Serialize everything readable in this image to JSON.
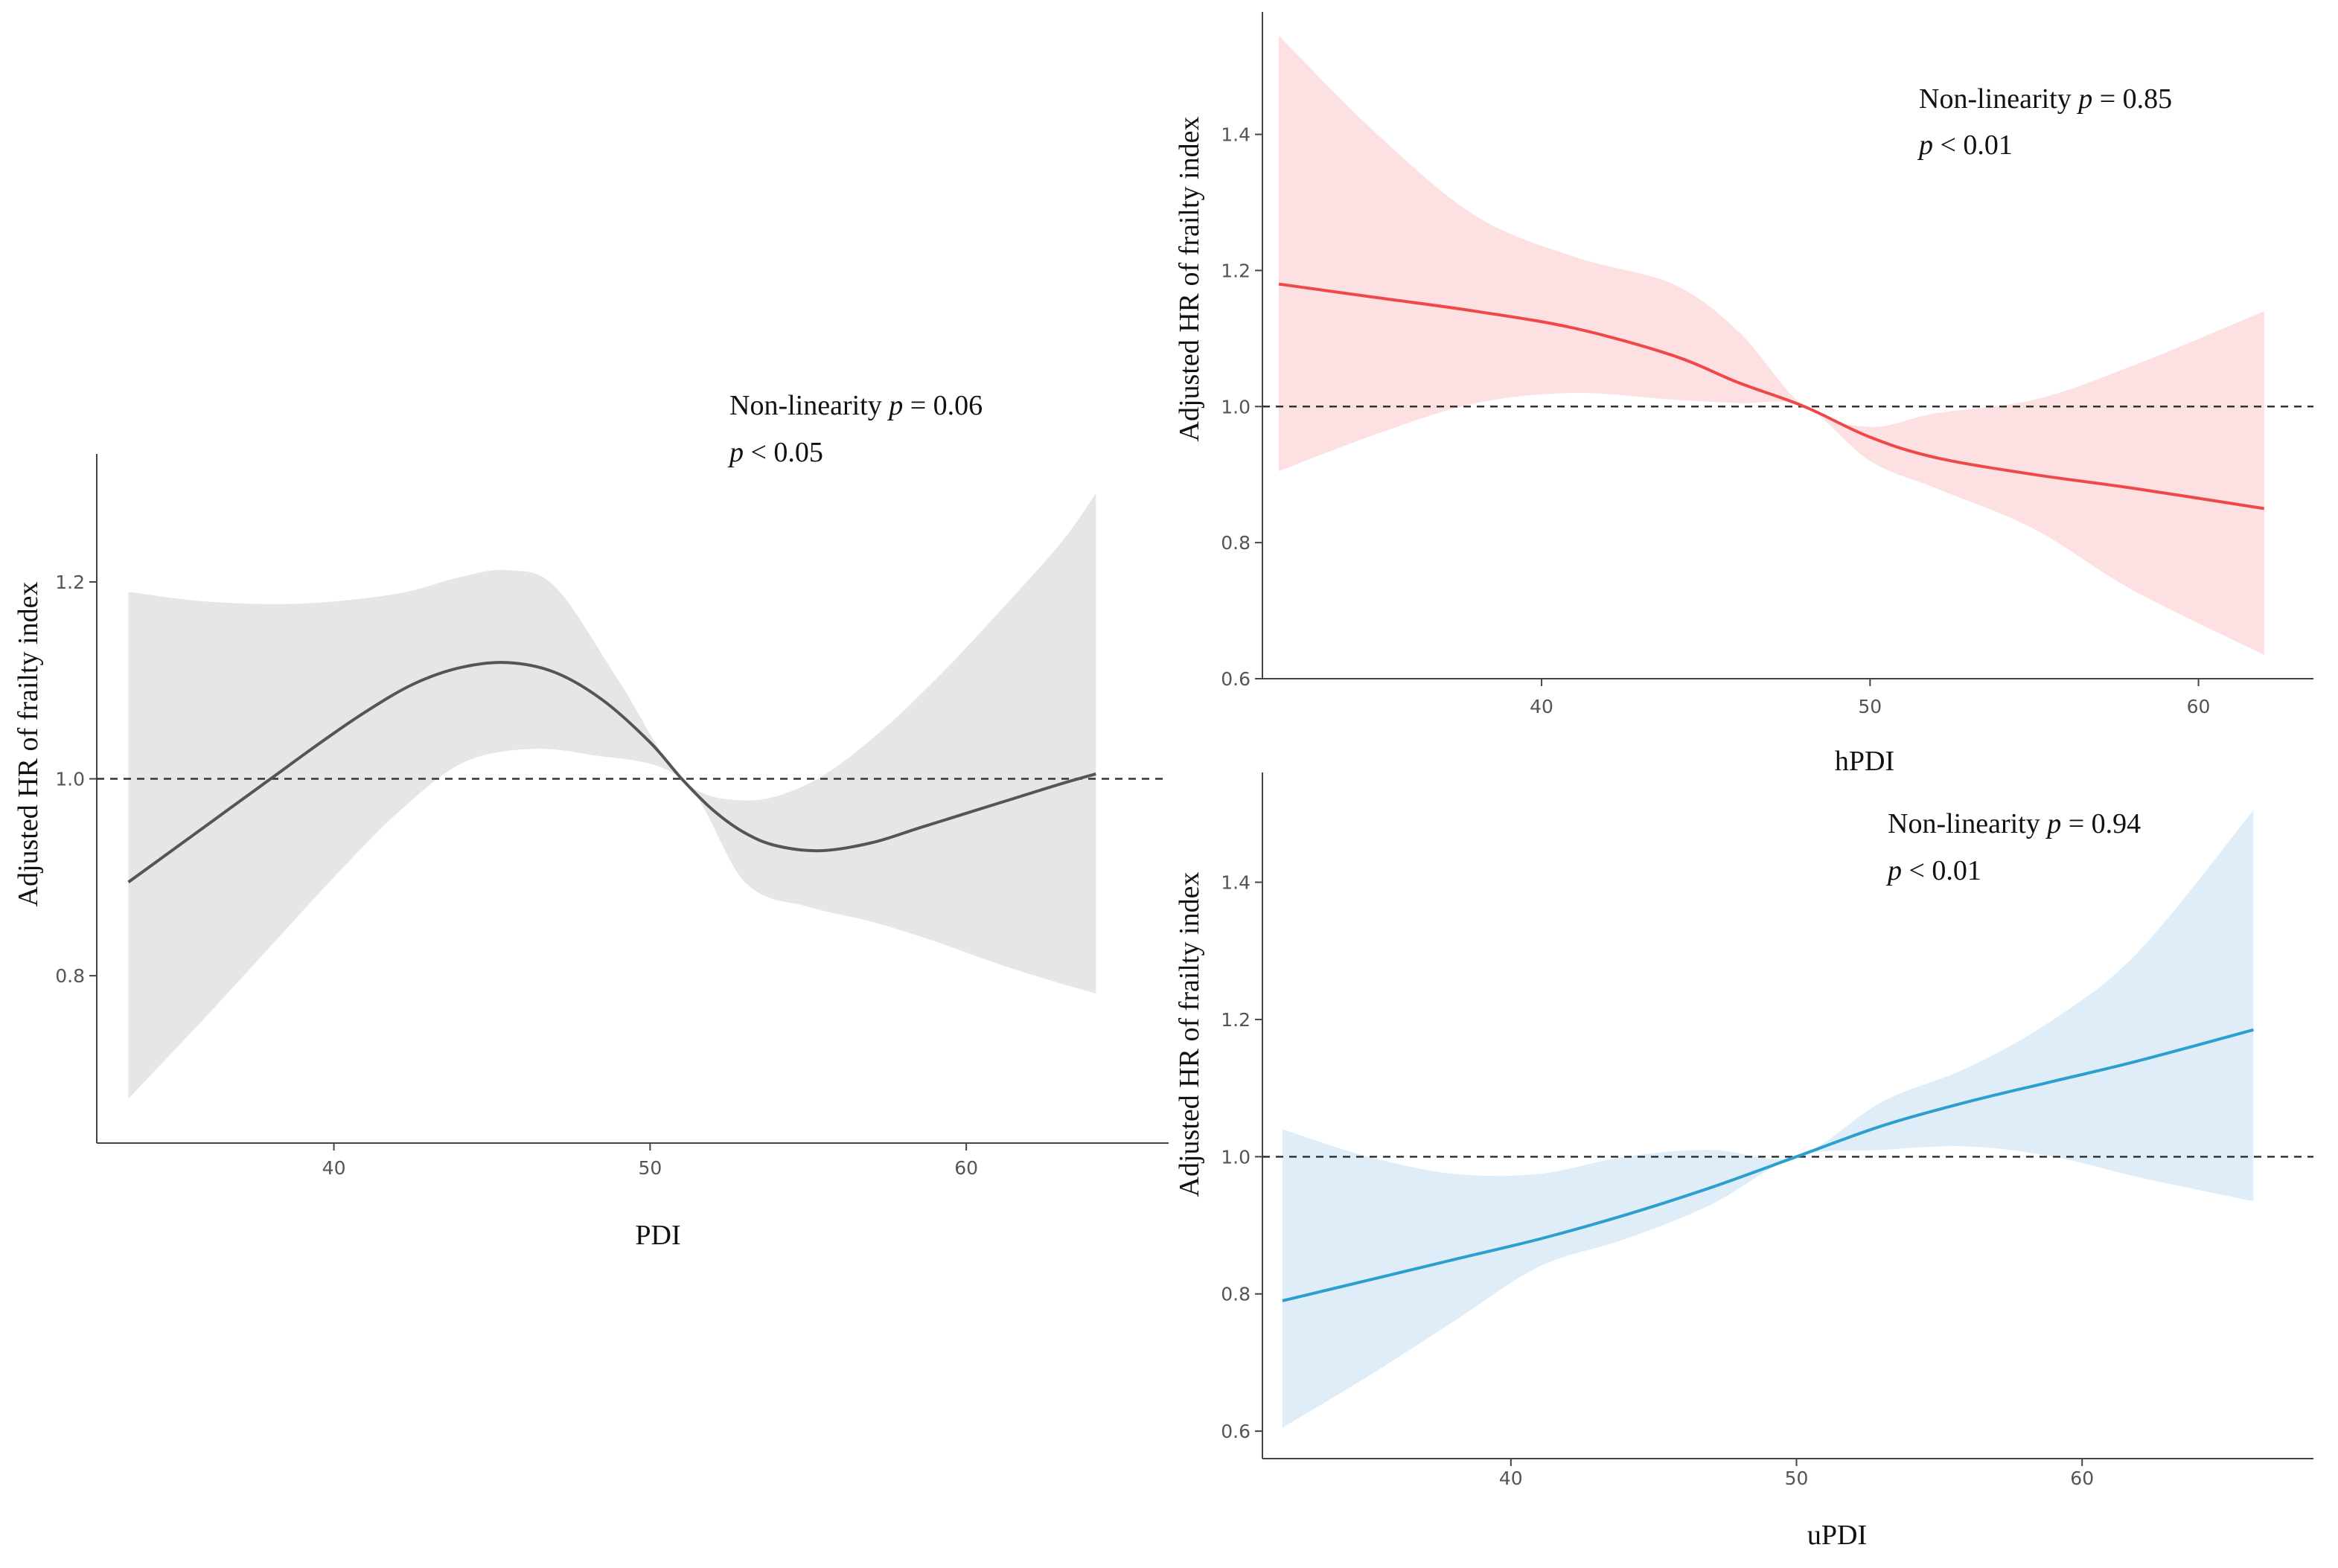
{
  "chart_data": [
    {
      "type": "line",
      "panel": "PDI",
      "xlabel": "PDI",
      "ylabel": "Adjusted HR of frailty index",
      "xlim": [
        32.5,
        66.4
      ],
      "ylim": [
        0.63,
        1.33
      ],
      "xticks": [
        40,
        50,
        60
      ],
      "yticks": [
        0.8,
        1.0,
        1.2
      ],
      "tick_labels_x": [
        "40",
        "50",
        "60"
      ],
      "tick_labels_y": [
        "0.8",
        "1.0",
        "1.2"
      ],
      "reference_line": 1.0,
      "color": "#555555",
      "band_color": "#e6e6e6",
      "annotation": {
        "line1_prefix": "Non-linearity ",
        "line1_p": "p",
        "line1_value": " = 0.06",
        "line2_p": "p",
        "line2_value": " < 0.05"
      },
      "series": [
        {
          "name": "HR",
          "x": [
            33.5,
            35,
            36.5,
            38,
            39.5,
            41,
            42.5,
            44,
            45.5,
            47,
            48.5,
            50,
            51,
            52,
            53,
            54,
            55.4,
            57,
            58.5,
            60,
            61.5,
            63,
            64.1
          ],
          "values": [
            0.895,
            0.93,
            0.965,
            1.0,
            1.035,
            1.068,
            1.096,
            1.113,
            1.118,
            1.108,
            1.08,
            1.037,
            1.0,
            0.968,
            0.945,
            0.932,
            0.927,
            0.935,
            0.95,
            0.965,
            0.98,
            0.995,
            1.005
          ]
        },
        {
          "name": "upper",
          "x": [
            33.5,
            36,
            39,
            42,
            44,
            45.5,
            47,
            49,
            51,
            53,
            55,
            57,
            59,
            61,
            63,
            64.1
          ],
          "values": [
            1.19,
            1.18,
            1.178,
            1.188,
            1.205,
            1.212,
            1.195,
            1.1,
            1.0,
            0.978,
            0.995,
            1.04,
            1.1,
            1.168,
            1.24,
            1.29
          ]
        },
        {
          "name": "lower",
          "x": [
            33.5,
            36,
            38,
            40,
            42,
            44,
            46,
            48,
            51,
            53,
            55,
            57,
            59,
            61,
            63,
            64.1
          ],
          "values": [
            0.675,
            0.76,
            0.83,
            0.9,
            0.965,
            1.015,
            1.03,
            1.025,
            1.0,
            0.895,
            0.87,
            0.855,
            0.835,
            0.812,
            0.792,
            0.782
          ]
        }
      ]
    },
    {
      "type": "line",
      "panel": "hPDI",
      "xlabel": "hPDI",
      "ylabel": "Adjusted HR of frailty index",
      "xlim": [
        31.5,
        63.5
      ],
      "ylim": [
        0.6,
        1.58
      ],
      "xticks": [
        40,
        50,
        60
      ],
      "yticks": [
        0.6,
        0.8,
        1.0,
        1.2,
        1.4
      ],
      "tick_labels_x": [
        "40",
        "50",
        "60"
      ],
      "tick_labels_y": [
        "0.6",
        "0.8",
        "1.0",
        "1.2",
        "1.4"
      ],
      "reference_line": 1.0,
      "color": "#f04848",
      "band_color": "#fde0e2",
      "annotation": {
        "line1_prefix": "Non-linearity ",
        "line1_p": "p",
        "line1_value": " = 0.85",
        "line2_p": "p",
        "line2_value": " < 0.01"
      },
      "series": [
        {
          "name": "HR",
          "x": [
            32,
            35,
            38,
            41,
            44,
            46,
            48,
            50,
            52,
            55,
            58,
            62
          ],
          "values": [
            1.18,
            1.16,
            1.14,
            1.115,
            1.075,
            1.035,
            1.0,
            0.955,
            0.925,
            0.9,
            0.88,
            0.85
          ]
        },
        {
          "name": "upper",
          "x": [
            32,
            35,
            38,
            41,
            44,
            46,
            48,
            50,
            52,
            55,
            58,
            62
          ],
          "values": [
            1.545,
            1.4,
            1.28,
            1.22,
            1.18,
            1.11,
            1.0,
            0.97,
            0.99,
            1.01,
            1.06,
            1.14
          ]
        },
        {
          "name": "lower",
          "x": [
            32,
            35,
            38,
            41,
            44,
            46,
            48,
            50,
            52,
            55,
            58,
            62
          ],
          "values": [
            0.905,
            0.96,
            1.005,
            1.02,
            1.01,
            1.005,
            1.0,
            0.92,
            0.88,
            0.82,
            0.73,
            0.635
          ]
        }
      ]
    },
    {
      "type": "line",
      "panel": "uPDI",
      "xlabel": "uPDI",
      "ylabel": "Adjusted HR of frailty index",
      "xlim": [
        31.3,
        68.1
      ],
      "ylim": [
        0.56,
        1.56
      ],
      "xticks": [
        40,
        50,
        60
      ],
      "yticks": [
        0.6,
        0.8,
        1.0,
        1.2,
        1.4
      ],
      "tick_labels_x": [
        "40",
        "50",
        "60"
      ],
      "tick_labels_y": [
        "0.6",
        "0.8",
        "1.0",
        "1.2",
        "1.4"
      ],
      "reference_line": 1.0,
      "color": "#2b9fce",
      "band_color": "#deedf8",
      "annotation": {
        "line1_prefix": "Non-linearity ",
        "line1_p": "p",
        "line1_value": " = 0.94",
        "line2_p": "p",
        "line2_value": " < 0.01"
      },
      "series": [
        {
          "name": "HR",
          "x": [
            32,
            35,
            38,
            41,
            44,
            47,
            50,
            53,
            56,
            59,
            62,
            66
          ],
          "values": [
            0.79,
            0.82,
            0.85,
            0.88,
            0.915,
            0.955,
            1.0,
            1.045,
            1.08,
            1.11,
            1.14,
            1.185
          ]
        },
        {
          "name": "upper",
          "x": [
            32,
            35,
            38,
            41,
            44,
            47,
            50,
            53,
            56,
            59,
            62,
            66
          ],
          "values": [
            1.04,
            1.0,
            0.975,
            0.975,
            1.0,
            1.01,
            1.0,
            1.08,
            1.13,
            1.2,
            1.3,
            1.505
          ]
        },
        {
          "name": "lower",
          "x": [
            32,
            35,
            38,
            41,
            44,
            47,
            50,
            53,
            56,
            59,
            62,
            66
          ],
          "values": [
            0.605,
            0.68,
            0.76,
            0.84,
            0.88,
            0.93,
            1.0,
            1.01,
            1.015,
            1.0,
            0.97,
            0.935
          ]
        }
      ]
    }
  ]
}
